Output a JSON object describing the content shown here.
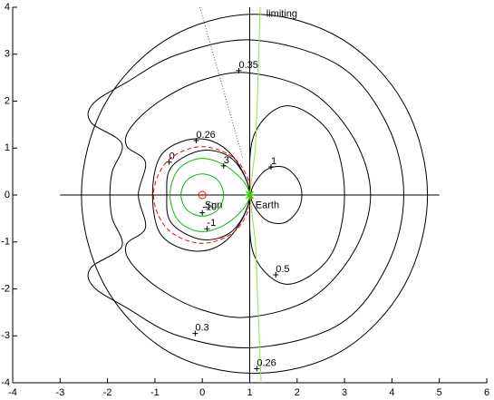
{
  "chart_data": {
    "type": "contour",
    "xlim": [
      -4,
      6
    ],
    "xticks": [
      -4,
      -3,
      -2,
      -1,
      0,
      1,
      2,
      3,
      4,
      5,
      6
    ],
    "ylim": [
      -4,
      4
    ],
    "yticks": [
      -4,
      -3,
      -2,
      -1,
      0,
      1,
      2,
      3,
      4
    ],
    "contours": [
      {
        "level": 0.26,
        "color": "#000000",
        "style": "solid",
        "closed": true,
        "x": [
          4.75,
          4.26,
          2.93,
          1.1,
          -0.73,
          -2.06,
          -2.55,
          -2.06,
          -0.73,
          1.1,
          2.93,
          4.26
        ],
        "y": [
          0,
          1.93,
          3.33,
          3.85,
          3.33,
          1.93,
          0,
          -1.93,
          -3.33,
          -3.8,
          -3.33,
          -1.93
        ]
      },
      {
        "level": 0.3,
        "color": "#000000",
        "style": "solid",
        "closed": true,
        "x": [
          4.25,
          3.9,
          2.9,
          1.1,
          -0.5,
          -1.6,
          -2.3,
          -2.35,
          -1.7,
          -1.9,
          -1.95,
          -1.9,
          -1.7,
          -2.35,
          -2.3,
          -1.6,
          -0.5,
          1.1,
          2.9,
          3.9
        ],
        "y": [
          0,
          1.5,
          2.75,
          3.3,
          3.0,
          2.4,
          1.95,
          1.55,
          1.1,
          0.5,
          0,
          -0.5,
          -1.1,
          -1.55,
          -1.95,
          -2.4,
          -3.0,
          -3.25,
          -2.75,
          -1.5
        ]
      },
      {
        "level": 0.35,
        "color": "#000000",
        "style": "solid",
        "closed": true,
        "x": [
          3.55,
          3.2,
          2.3,
          1.0,
          0,
          -0.9,
          -1.5,
          -1.6,
          -1.2,
          -1.35,
          -1.2,
          -1.6,
          -1.5,
          -0.9,
          0,
          1.0,
          2.3,
          3.2
        ],
        "y": [
          0,
          1.2,
          2.2,
          2.6,
          2.45,
          2.0,
          1.45,
          1.05,
          0.7,
          0,
          -0.7,
          -1.05,
          -1.45,
          -2.0,
          -2.45,
          -2.6,
          -2.2,
          -1.2
        ]
      },
      {
        "level": 0.5,
        "color": "#000000",
        "style": "solid",
        "closed": true,
        "x": [
          1.0,
          1.1,
          1.8,
          2.7,
          3.0,
          2.7,
          1.8,
          1.1
        ],
        "y": [
          0,
          1.3,
          1.9,
          1.3,
          0,
          -1.3,
          -1.9,
          -1.3
        ]
      },
      {
        "level": 0.26,
        "color": "#000000",
        "style": "solid",
        "closed": true,
        "x": [
          1.0,
          0.7,
          0.2,
          -0.4,
          -0.9,
          -1.05,
          -0.9,
          -0.4,
          0.2,
          0.7
        ],
        "y": [
          0,
          0.75,
          1.15,
          1.15,
          0.8,
          0,
          -0.8,
          -1.15,
          -1.15,
          -0.75
        ]
      },
      {
        "level": 1,
        "color": "#000000",
        "style": "solid",
        "closed": true,
        "x": [
          1.02,
          1.3,
          1.7,
          2.0,
          2.1,
          2.0,
          1.7,
          1.3
        ],
        "y": [
          0,
          0.5,
          0.6,
          0.35,
          0,
          -0.35,
          -0.6,
          -0.5
        ]
      },
      {
        "level": 0,
        "color": "#ff0000",
        "style": "dashed",
        "closed": true,
        "x": [
          1.03,
          0.73,
          0,
          -0.73,
          -1.03,
          -0.73,
          0,
          0.73
        ],
        "y": [
          0,
          0.73,
          1.03,
          0.73,
          0,
          -0.73,
          -1.03,
          -0.73
        ]
      },
      {
        "level": 3,
        "color": "#000000",
        "style": "solid",
        "closed": true,
        "x": [
          1.0,
          0.65,
          0,
          -0.65,
          -0.75,
          -0.65,
          0,
          0.65
        ],
        "y": [
          0,
          0.75,
          0.95,
          0.6,
          0,
          -0.6,
          -0.95,
          -0.75
        ]
      },
      {
        "level": -1,
        "color": "#00bb00",
        "style": "solid",
        "closed": true,
        "x": [
          1.0,
          0.6,
          0,
          -0.5,
          -0.68,
          -0.5,
          0,
          0.6
        ],
        "y": [
          0,
          0.55,
          0.78,
          0.55,
          0,
          -0.55,
          -0.78,
          -0.55
        ]
      },
      {
        "level": -10,
        "color": "#00bb00",
        "style": "solid",
        "closed": true,
        "x": [
          0.45,
          0.32,
          0,
          -0.32,
          -0.45,
          -0.32,
          0,
          0.32
        ],
        "y": [
          0,
          0.32,
          0.45,
          0.32,
          0,
          -0.32,
          -0.45,
          -0.32
        ]
      },
      {
        "level": null,
        "color": "#99dd44",
        "style": "solid",
        "closed": false,
        "x": [
          1.22,
          1.19,
          1.16,
          1.12,
          1.0,
          1.12,
          1.16,
          1.2,
          1.24
        ],
        "y": [
          4,
          3,
          2,
          1,
          0,
          -1,
          -2,
          -3,
          -4
        ]
      },
      {
        "level": null,
        "color": "#555555",
        "style": "dotted",
        "closed": false,
        "x": [
          -0.05,
          0.85
        ],
        "y": [
          4,
          0.8
        ]
      }
    ],
    "contour_labels": [
      {
        "level": 0.35,
        "x": 0.77,
        "y": 2.65
      },
      {
        "level": 0.26,
        "x": -0.13,
        "y": 1.16
      },
      {
        "level": 0,
        "x": -0.7,
        "y": 0.7
      },
      {
        "level": 3,
        "x": 0.45,
        "y": 0.62
      },
      {
        "level": 1,
        "x": 1.45,
        "y": 0.6
      },
      {
        "level": -10,
        "x": 0.0,
        "y": -0.38
      },
      {
        "level": -1,
        "x": 0.1,
        "y": -0.72
      },
      {
        "level": 0.5,
        "x": 1.55,
        "y": -1.7
      },
      {
        "level": 0.3,
        "x": -0.15,
        "y": -2.95
      },
      {
        "level": 0.26,
        "x": 1.15,
        "y": -3.7
      }
    ],
    "annotations": [
      {
        "text": "Sun",
        "x": 0.05,
        "y": -0.22
      },
      {
        "text": "Earth",
        "x": 1.12,
        "y": -0.22
      },
      {
        "text": "limiting",
        "x": 1.35,
        "y": 3.85
      }
    ]
  }
}
